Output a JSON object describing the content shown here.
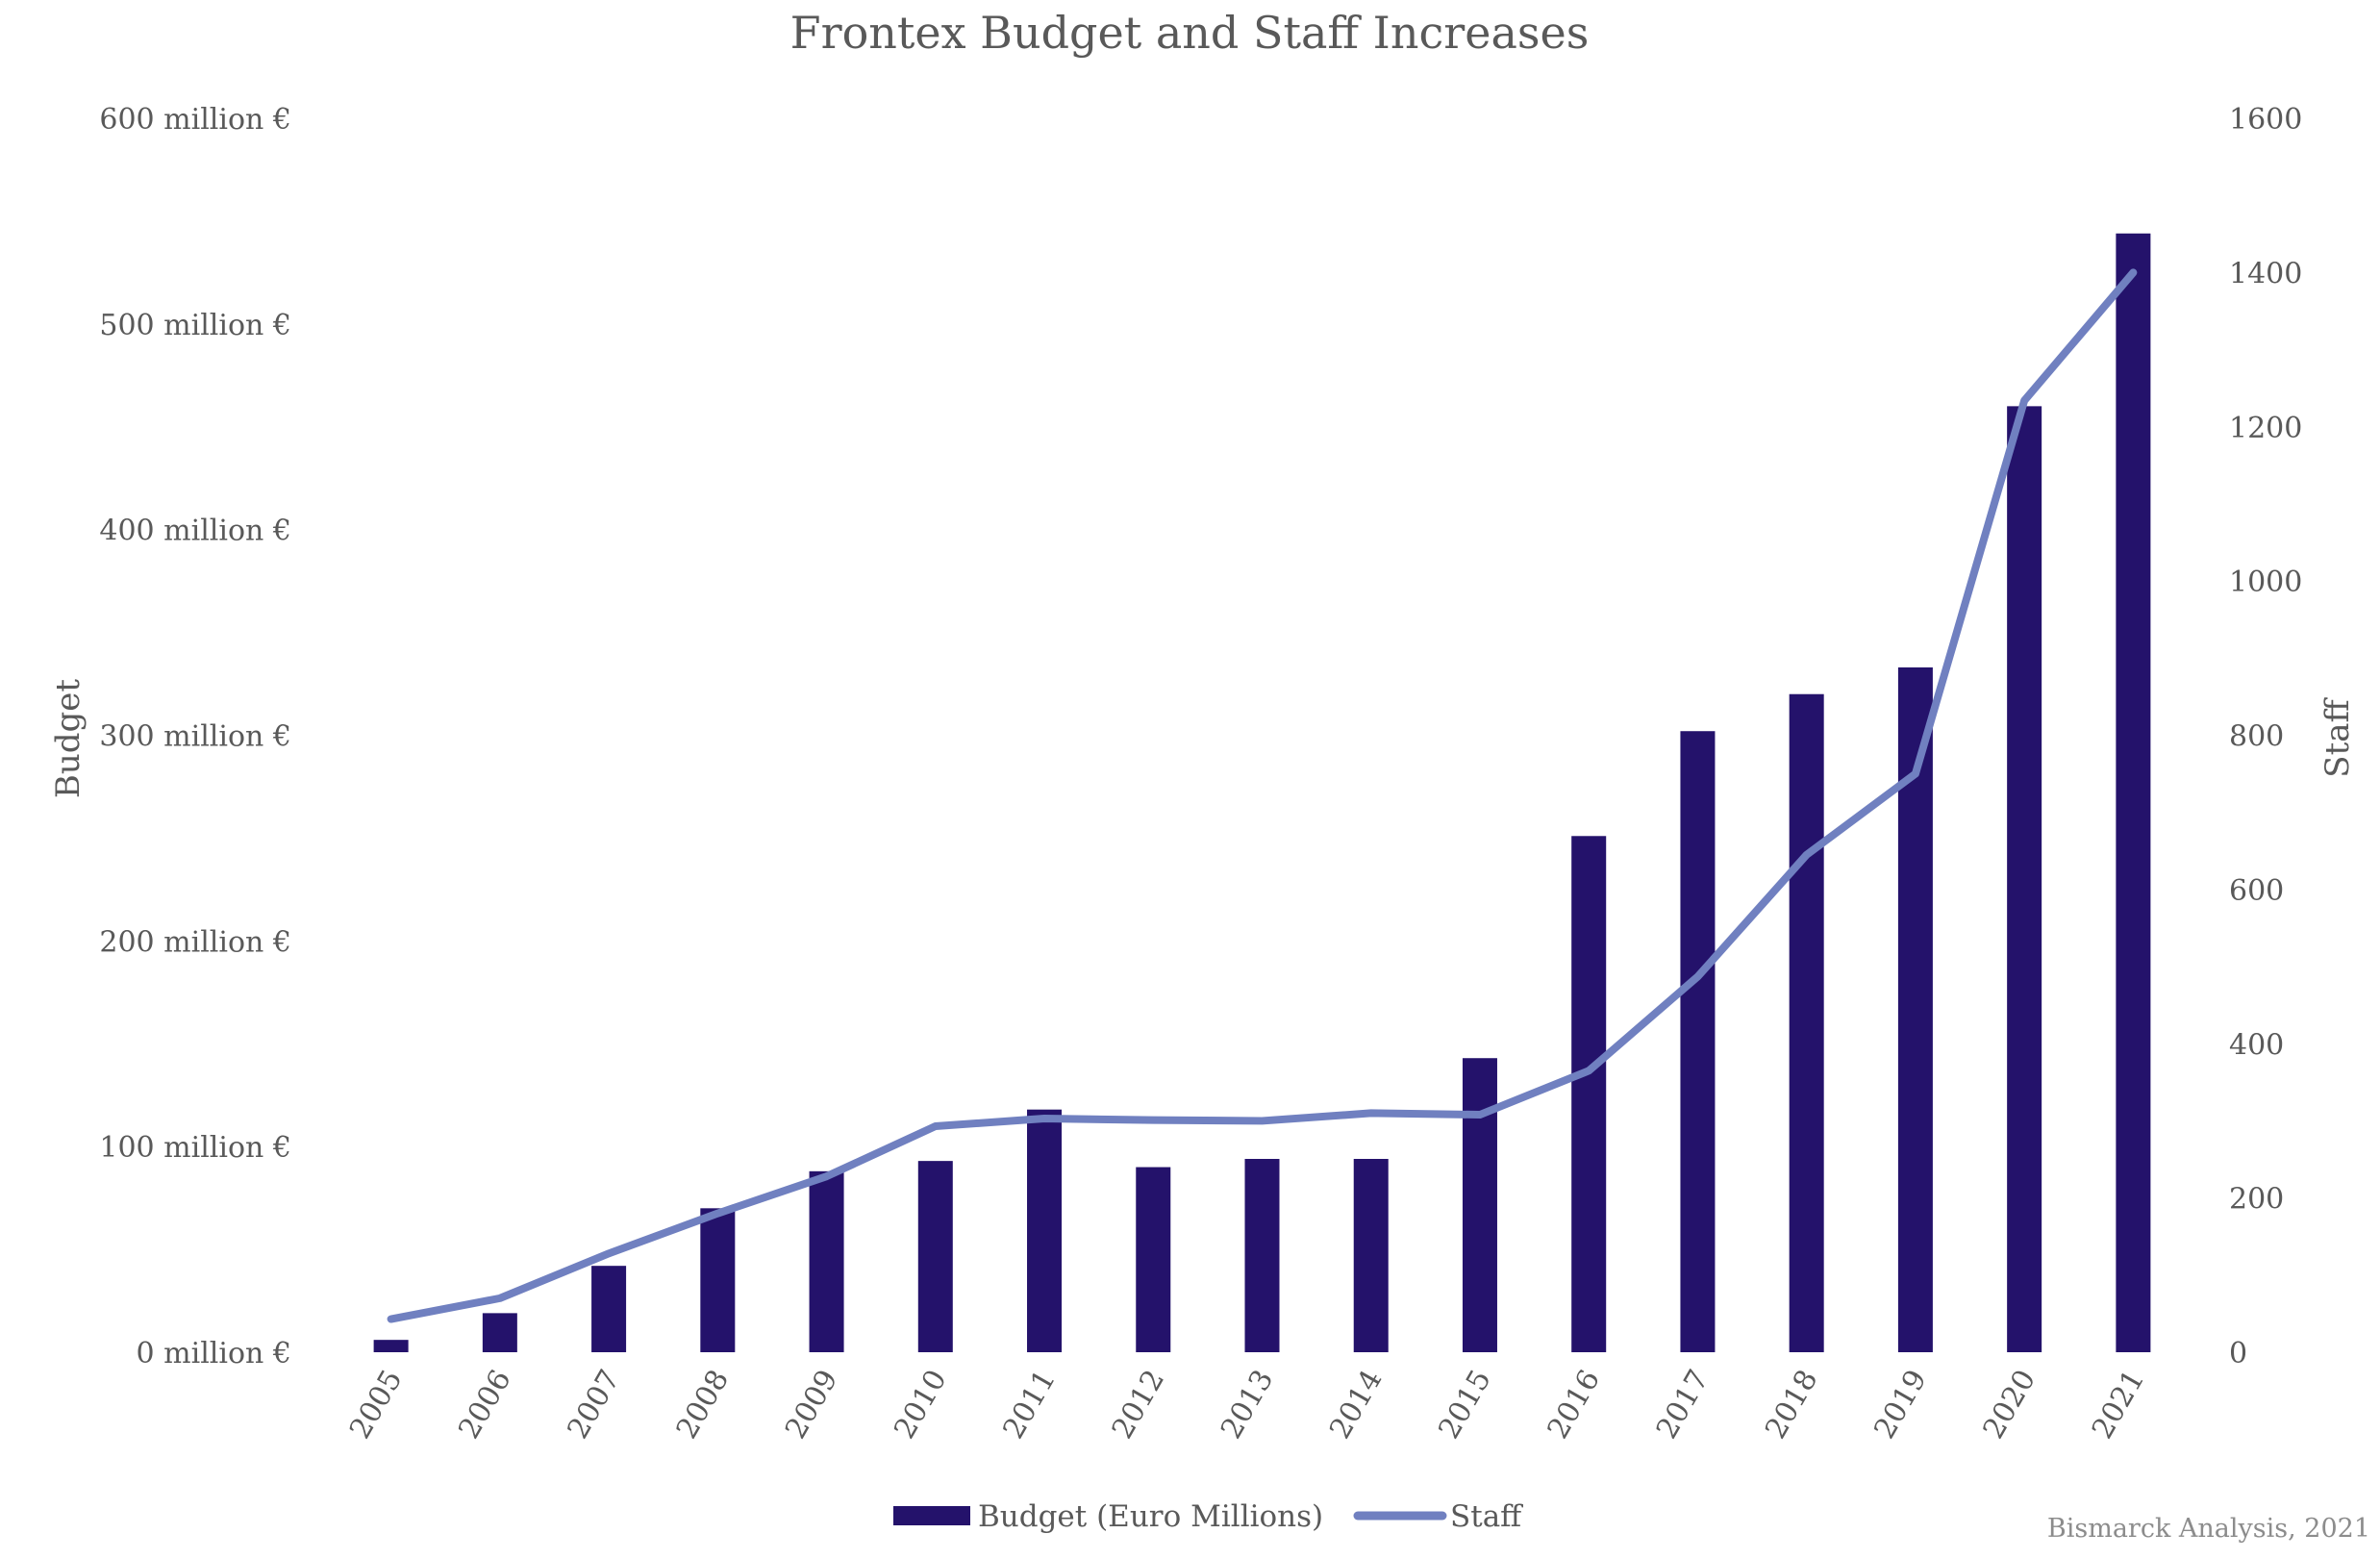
{
  "chart_data": {
    "type": "bar+line",
    "title": "Frontex Budget and Staff Increases",
    "categories": [
      "2005",
      "2006",
      "2007",
      "2008",
      "2009",
      "2010",
      "2011",
      "2012",
      "2013",
      "2014",
      "2015",
      "2016",
      "2017",
      "2018",
      "2019",
      "2020",
      "2021"
    ],
    "series": [
      {
        "name": "Budget (Euro Millions)",
        "type": "bar",
        "axis": "left",
        "color": "#24126b",
        "values": [
          6,
          19,
          42,
          70,
          88,
          93,
          118,
          90,
          94,
          94,
          143,
          251,
          302,
          320,
          333,
          460,
          544
        ]
      },
      {
        "name": "Staff",
        "type": "line",
        "axis": "right",
        "color": "#7080c0",
        "values": [
          43,
          70,
          128,
          180,
          228,
          293,
          303,
          301,
          300,
          310,
          308,
          365,
          487,
          645,
          750,
          1234,
          1400
        ]
      }
    ],
    "y_left": {
      "label": "Budget",
      "range": [
        0,
        600
      ],
      "ticks": [
        "0 million €",
        "100 million €",
        "200 million €",
        "300 million €",
        "400 million €",
        "500 million €",
        "600 million €"
      ]
    },
    "y_right": {
      "label": "Staff",
      "range": [
        0,
        1600
      ],
      "ticks": [
        "0",
        "200",
        "400",
        "600",
        "800",
        "1000",
        "1200",
        "1400",
        "1600"
      ]
    },
    "legend": [
      "Budget (Euro Millions)",
      "Staff"
    ],
    "legend_position": "bottom-center",
    "grid": false,
    "source": "Bismarck Analysis, 2021"
  }
}
